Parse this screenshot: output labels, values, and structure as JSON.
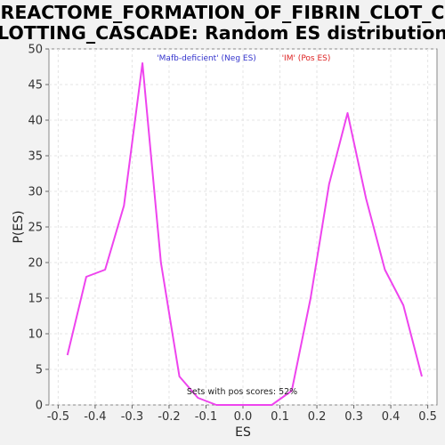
{
  "chart_data": {
    "type": "line",
    "title_lines": [
      "REACTOME_FORMATION_OF_FIBRIN_CLOT_C",
      "LOTTING_CASCADE: Random ES distribution"
    ],
    "xlabel": "ES",
    "ylabel": "P(ES)",
    "xlim": [
      -0.525,
      0.525
    ],
    "ylim": [
      0,
      50
    ],
    "xticks": [
      -0.5,
      -0.4,
      -0.3,
      -0.2,
      -0.1,
      0.0,
      0.1,
      0.2,
      0.3,
      0.4,
      0.5
    ],
    "xtick_labels": [
      "-0.5",
      "-0.4",
      "-0.3",
      "-0.2",
      "-0.1",
      "0.0",
      "0.1",
      "0.2",
      "0.3",
      "0.4",
      "0.5"
    ],
    "yticks": [
      0,
      5,
      10,
      15,
      20,
      25,
      30,
      35,
      40,
      45,
      50
    ],
    "ytick_labels": [
      "0",
      "5",
      "10",
      "15",
      "20",
      "25",
      "30",
      "35",
      "40",
      "45",
      "50"
    ],
    "grid": true,
    "legend": [
      {
        "label": "'Mafb-deficient' (Neg ES)",
        "color": "#3333cc"
      },
      {
        "label": "'IM' (Pos ES)",
        "color": "#dd2222"
      }
    ],
    "annotation": "Sets with pos scores: 52%",
    "line_color": "#ee44ee",
    "series": [
      {
        "x": [
          -0.475,
          -0.424,
          -0.373,
          -0.322,
          -0.272,
          -0.222,
          -0.172,
          -0.122,
          -0.072,
          -0.022,
          0.028,
          0.078,
          0.132,
          0.183,
          0.233,
          0.283,
          0.333,
          0.384,
          0.434,
          0.484
        ],
        "y": [
          7,
          18,
          19,
          28,
          48,
          20,
          4,
          1,
          0,
          0,
          0,
          0,
          2,
          15,
          31,
          41,
          29,
          19,
          14,
          4
        ]
      }
    ]
  }
}
